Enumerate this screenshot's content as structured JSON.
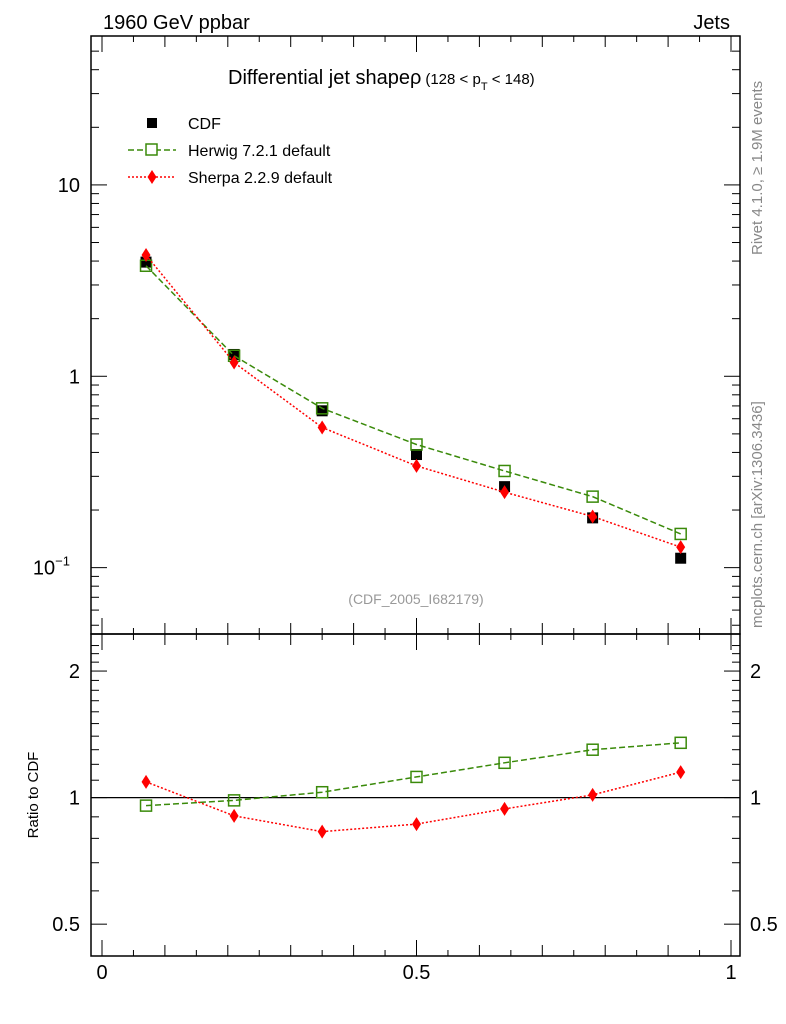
{
  "header": {
    "left": "1960 GeV ppbar",
    "right": "Jets"
  },
  "side_labels": {
    "rivet": "Rivet 4.1.0, ≥ 1.9M events",
    "url": "mcplots.cern.ch [arXiv:1306.3436]"
  },
  "watermark": "(CDF_2005_I682179)",
  "colors": {
    "herwig": "#3a8a0a",
    "sherpa": "#ff0000",
    "data": "#000000"
  },
  "chart_data": [
    {
      "type": "scatter",
      "title": "Differential jet shapeρ",
      "subtitle_parts": {
        "pre": "(128 < p",
        "sub": "T",
        "post": " < 148)"
      },
      "xlabel": "",
      "ylabel": "",
      "yscale": "log",
      "xlim": [
        0,
        1
      ],
      "ylim": [
        0.045,
        60
      ],
      "y_ticks": [
        {
          "value": 10,
          "label": "10"
        },
        {
          "value": 1,
          "label": "1"
        },
        {
          "value": 0.1,
          "label_base": "10",
          "label_exp": "−1"
        }
      ],
      "x": [
        0.07,
        0.21,
        0.35,
        0.5,
        0.64,
        0.78,
        0.92
      ],
      "legend": [
        {
          "key": "data",
          "label": "CDF"
        },
        {
          "key": "herwig",
          "label": "Herwig 7.2.1 default"
        },
        {
          "key": "sherpa",
          "label": "Sherpa 2.2.9 default"
        }
      ],
      "series": [
        {
          "name": "CDF",
          "key": "data",
          "values": [
            3.95,
            1.3,
            0.66,
            0.39,
            0.265,
            0.182,
            0.112
          ]
        },
        {
          "name": "Herwig 7.2.1 default",
          "key": "herwig",
          "values": [
            3.78,
            1.28,
            0.68,
            0.44,
            0.32,
            0.235,
            0.15
          ]
        },
        {
          "name": "Sherpa 2.2.9 default",
          "key": "sherpa",
          "values": [
            4.3,
            1.18,
            0.54,
            0.34,
            0.248,
            0.185,
            0.128
          ]
        }
      ]
    },
    {
      "type": "line",
      "title": "",
      "xlabel": "",
      "ylabel": "Ratio to CDF",
      "yscale": "log",
      "xlim": [
        0,
        1
      ],
      "ylim": [
        0.42,
        2.45
      ],
      "reference_line": 1,
      "y_ticks": [
        {
          "value": 2,
          "label": "2"
        },
        {
          "value": 1,
          "label": "1"
        },
        {
          "value": 0.5,
          "label": "0.5"
        }
      ],
      "x_ticks": [
        {
          "value": 0,
          "label": "0"
        },
        {
          "value": 0.5,
          "label": "0.5"
        },
        {
          "value": 1,
          "label": "1"
        }
      ],
      "x": [
        0.07,
        0.21,
        0.35,
        0.5,
        0.64,
        0.78,
        0.92
      ],
      "series": [
        {
          "name": "Herwig 7.2.1 default",
          "key": "herwig",
          "values": [
            0.957,
            0.985,
            1.03,
            1.12,
            1.21,
            1.3,
            1.35
          ]
        },
        {
          "name": "Sherpa 2.2.9 default",
          "key": "sherpa",
          "values": [
            1.09,
            0.905,
            0.83,
            0.865,
            0.94,
            1.015,
            1.15
          ]
        }
      ]
    }
  ]
}
